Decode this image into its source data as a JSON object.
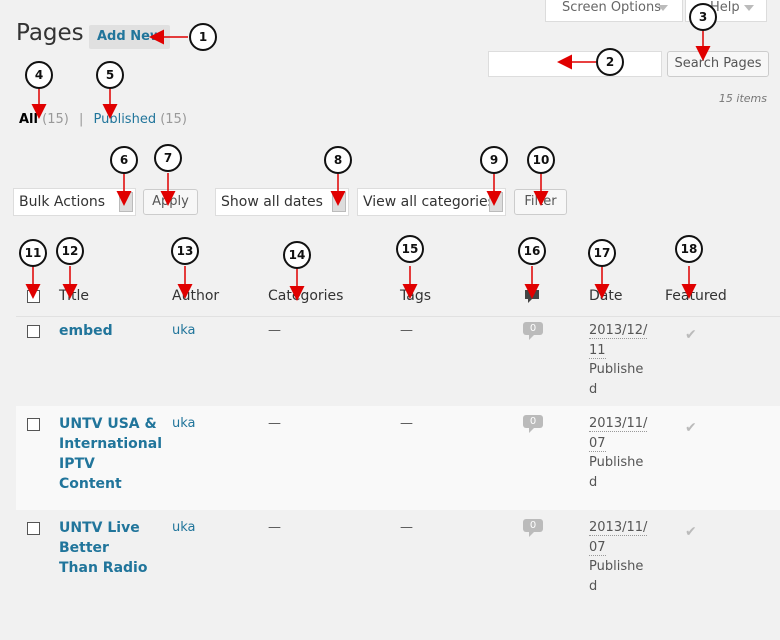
{
  "header": {
    "screen_options": "Screen Options",
    "help": "Help",
    "title": "Pages",
    "add_new": "Add New"
  },
  "search": {
    "value": "",
    "button": "Search Pages"
  },
  "items_count": "15 items",
  "views": {
    "all_label": "All",
    "all_count": "(15)",
    "separator": "|",
    "published_label": "Published",
    "published_count": "(15)"
  },
  "filters": {
    "bulk_actions": "Bulk Actions",
    "apply": "Apply",
    "dates": "Show all dates",
    "categories": "View all categories",
    "filter": "Filter"
  },
  "table": {
    "columns": {
      "title": "Title",
      "author": "Author",
      "categories": "Categories",
      "tags": "Tags",
      "date": "Date",
      "featured": "Featured"
    },
    "rows": [
      {
        "title": "embed",
        "author": "uka",
        "categories": "—",
        "tags": "—",
        "comments": "0",
        "date": "2013/12/11",
        "status": "Published"
      },
      {
        "title": "UNTV USA & International IPTV Content",
        "author": "uka",
        "categories": "—",
        "tags": "—",
        "comments": "0",
        "date": "2013/11/07",
        "status": "Published"
      },
      {
        "title": "UNTV Live Better Than Radio",
        "author": "uka",
        "categories": "—",
        "tags": "—",
        "comments": "0",
        "date": "2013/11/07",
        "status": "Published"
      }
    ]
  },
  "callouts": [
    "1",
    "2",
    "3",
    "4",
    "5",
    "6",
    "7",
    "8",
    "9",
    "10",
    "11",
    "12",
    "13",
    "14",
    "15",
    "16",
    "17",
    "18"
  ],
  "colors": {
    "arrow": "#e00000",
    "link": "#21759b"
  }
}
